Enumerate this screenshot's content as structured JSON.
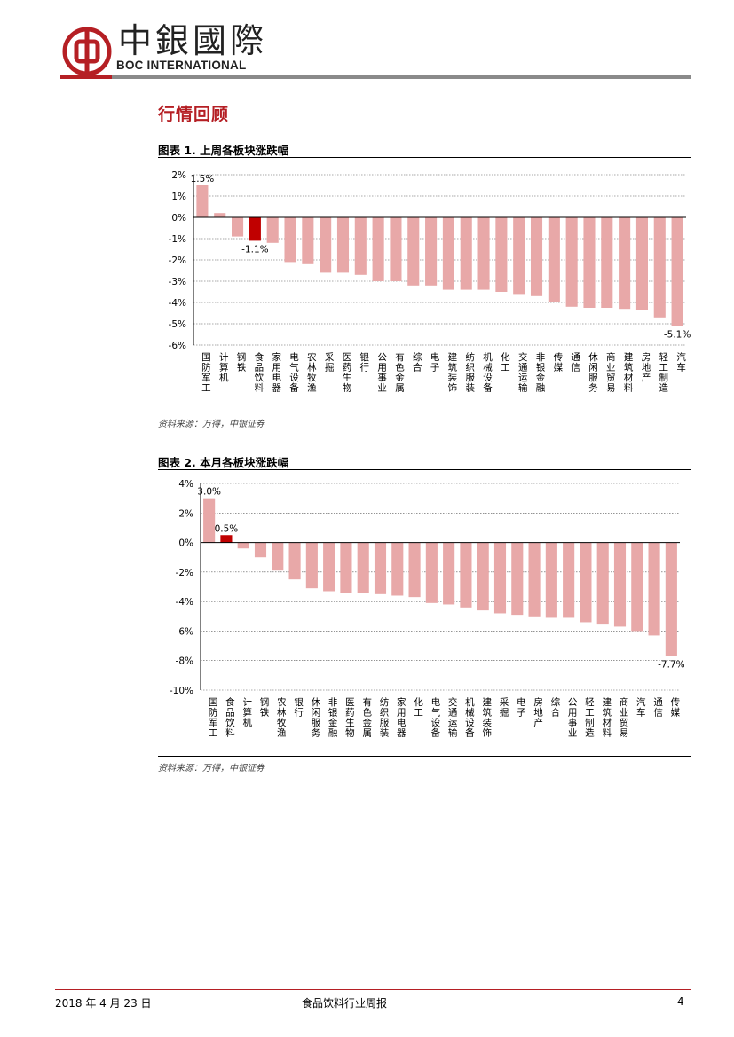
{
  "header": {
    "brand_cn": "中銀國際",
    "brand_en": "BOC INTERNATIONAL"
  },
  "section": {
    "title": "行情回顾"
  },
  "figure1": {
    "title": "图表 1. 上周各板块涨跌幅",
    "source": "资料来源：万得，中银证券"
  },
  "figure2": {
    "title": "图表 2. 本月各板块涨跌幅",
    "source": "资料来源：万得，中银证券"
  },
  "footer": {
    "date": "2018 年 4 月 23 日",
    "report": "食品饮料行业周报",
    "page": "4"
  },
  "colors": {
    "bar": "#e8a8a8",
    "highlight": "#c00000",
    "brand": "#b51f24"
  },
  "chart_data": [
    {
      "type": "bar",
      "title": "上周各板块涨跌幅",
      "xlabel": "",
      "ylabel": "",
      "ylim": [
        -6,
        2
      ],
      "yticks": [
        2,
        1,
        0,
        -1,
        -2,
        -3,
        -4,
        -5,
        -6
      ],
      "tick_suffix": "%",
      "categories": [
        "国防军工",
        "计算机",
        "钢铁",
        "食品饮料",
        "家用电器",
        "电气设备",
        "农林牧渔",
        "采掘",
        "医药生物",
        "银行",
        "公用事业",
        "有色金属",
        "综合",
        "电子",
        "建筑装饰",
        "纺织服装",
        "机械设备",
        "化工",
        "交通运输",
        "非银金融",
        "传媒",
        "通信",
        "休闲服务",
        "商业贸易",
        "建筑材料",
        "房地产",
        "轻工制造",
        "汽车"
      ],
      "values": [
        1.5,
        0.2,
        -0.9,
        -1.1,
        -1.2,
        -2.1,
        -2.2,
        -2.6,
        -2.6,
        -2.7,
        -3.0,
        -3.0,
        -3.2,
        -3.2,
        -3.4,
        -3.4,
        -3.4,
        -3.5,
        -3.6,
        -3.7,
        -4.0,
        -4.2,
        -4.25,
        -4.25,
        -4.3,
        -4.35,
        -4.7,
        -5.1
      ],
      "highlight_index": 3,
      "data_labels": [
        {
          "index": 0,
          "text": "1.5%"
        },
        {
          "index": 3,
          "text": "-1.1%"
        },
        {
          "index": 27,
          "text": "-5.1%"
        }
      ]
    },
    {
      "type": "bar",
      "title": "本月各板块涨跌幅",
      "xlabel": "",
      "ylabel": "",
      "ylim": [
        -10,
        4
      ],
      "yticks": [
        4,
        2,
        0,
        -2,
        -4,
        -6,
        -8,
        -10
      ],
      "tick_suffix": "%",
      "categories": [
        "国防军工",
        "食品饮料",
        "计算机",
        "钢铁",
        "农林牧渔",
        "银行",
        "休闲服务",
        "非银金融",
        "医药生物",
        "有色金属",
        "纺织服装",
        "家用电器",
        "化工",
        "电气设备",
        "交通运输",
        "机械设备",
        "建筑装饰",
        "采掘",
        "电子",
        "房地产",
        "综合",
        "公用事业",
        "轻工制造",
        "建筑材料",
        "商业贸易",
        "汽车",
        "通信",
        "传媒"
      ],
      "values": [
        3.0,
        0.5,
        -0.4,
        -1.0,
        -1.9,
        -2.5,
        -3.1,
        -3.3,
        -3.4,
        -3.4,
        -3.5,
        -3.6,
        -3.7,
        -4.1,
        -4.2,
        -4.4,
        -4.6,
        -4.8,
        -4.9,
        -5.0,
        -5.1,
        -5.1,
        -5.4,
        -5.5,
        -5.7,
        -6.0,
        -6.3,
        -7.7
      ],
      "highlight_index": 1,
      "data_labels": [
        {
          "index": 0,
          "text": "3.0%"
        },
        {
          "index": 1,
          "text": "0.5%"
        },
        {
          "index": 27,
          "text": "-7.7%"
        }
      ]
    }
  ]
}
